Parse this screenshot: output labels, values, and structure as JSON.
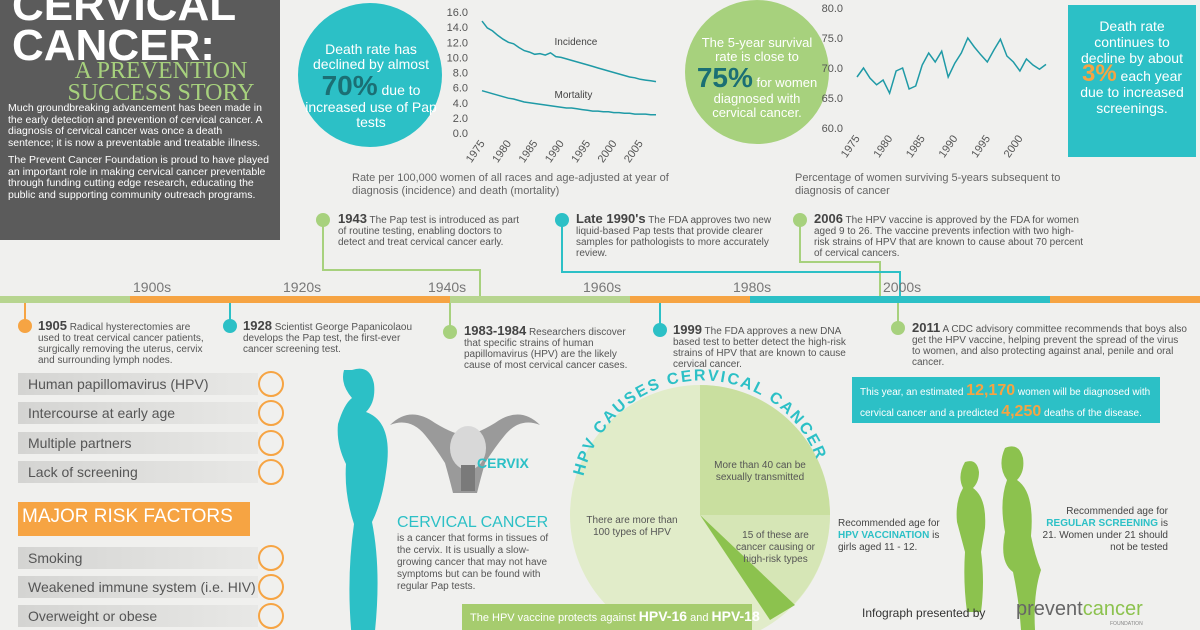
{
  "header": {
    "title": "CERVICAL CANCER:",
    "subtitle": "A PREVENTION SUCCESS STORY",
    "paragraphs": [
      "Much groundbreaking advancement has been made in the early detection and prevention of cervical cancer. A diagnosis of cervical cancer was once a death sentence; it is now a preventable and treatable illness.",
      "The Prevent Cancer Foundation is proud to have played an important role in making cervical cancer preventable through funding cutting edge research, educating the public and supporting community outreach programs."
    ]
  },
  "stats": {
    "death_rate": {
      "before": "Death rate has declined by almost",
      "highlight": "70%",
      "after": "due to increased use of Pap tests"
    },
    "survival": {
      "before": "The 5-year survival rate is close to",
      "highlight": "75%",
      "after": "for women diagnosed with cervical cancer."
    },
    "decline": {
      "before": "Death rate continues to decline by about",
      "highlight": "3%",
      "after": "each year due to increased screenings."
    }
  },
  "chart_data": [
    {
      "type": "line",
      "caption": "Rate per 100,000 women of all races and age-adjusted at year of diagnosis (incidence) and death (mortality)",
      "x": [
        1975,
        1976,
        1977,
        1978,
        1979,
        1980,
        1981,
        1982,
        1983,
        1984,
        1985,
        1986,
        1987,
        1988,
        1989,
        1990,
        1991,
        1992,
        1993,
        1994,
        1995,
        1996,
        1997,
        1998,
        1999,
        2000,
        2001,
        2002,
        2003,
        2004,
        2005,
        2006,
        2007,
        2008
      ],
      "series": [
        {
          "name": "Incidence",
          "color": "#1f9aa6",
          "values": [
            14.8,
            13.9,
            13.5,
            12.9,
            12.4,
            12.0,
            11.8,
            11.3,
            10.9,
            10.7,
            10.4,
            10.5,
            10.3,
            10.6,
            10.1,
            10.0,
            9.8,
            9.6,
            9.4,
            9.2,
            9.0,
            8.8,
            8.6,
            8.4,
            8.2,
            8.0,
            7.8,
            7.6,
            7.4,
            7.3,
            7.1,
            7.0,
            6.9,
            6.8
          ]
        },
        {
          "name": "Mortality",
          "color": "#1f9aa6",
          "values": [
            5.6,
            5.4,
            5.2,
            5.0,
            4.8,
            4.6,
            4.5,
            4.3,
            4.1,
            4.0,
            3.9,
            3.8,
            3.7,
            3.6,
            3.5,
            3.4,
            3.3,
            3.3,
            3.2,
            3.1,
            3.0,
            2.9,
            2.9,
            2.8,
            2.8,
            2.7,
            2.7,
            2.6,
            2.6,
            2.5,
            2.5,
            2.5,
            2.4,
            2.4
          ]
        }
      ],
      "xlim": [
        1975,
        2008
      ],
      "xticks": [
        1975,
        1980,
        1985,
        1990,
        1995,
        2000,
        2005
      ],
      "ylim": [
        0,
        16
      ],
      "yticks": [
        {
          "value": 0,
          "label": "0.0"
        },
        {
          "value": 2,
          "label": "2.0"
        },
        {
          "value": 4,
          "label": "4.0"
        },
        {
          "value": 6,
          "label": "6.0"
        },
        {
          "value": 8,
          "label": "8.0"
        },
        {
          "value": 10,
          "label": "10.0"
        },
        {
          "value": 12,
          "label": "12.0"
        },
        {
          "value": 14,
          "label": "14.0"
        },
        {
          "value": 16,
          "label": "16.0"
        }
      ],
      "grid": false
    },
    {
      "type": "line",
      "caption": "Percentage of women surviving 5-years subsequent to diagnosis of cancer",
      "x": [
        1975,
        1976,
        1977,
        1978,
        1979,
        1980,
        1981,
        1982,
        1983,
        1984,
        1985,
        1986,
        1987,
        1988,
        1989,
        1990,
        1991,
        1992,
        1993,
        1994,
        1995,
        1996,
        1997,
        1998,
        1999,
        2000,
        2001,
        2002,
        2003,
        2004
      ],
      "series": [
        {
          "color": "#1f9aa6",
          "values": [
            68.5,
            70.0,
            68.3,
            67.2,
            68.0,
            65.8,
            69.5,
            70.0,
            66.5,
            67.0,
            70.5,
            72.5,
            71.0,
            72.8,
            68.5,
            70.8,
            72.5,
            75.0,
            73.5,
            72.2,
            71.0,
            73.0,
            74.8,
            72.0,
            71.0,
            69.5,
            71.5,
            70.5,
            69.8,
            70.6
          ]
        }
      ],
      "xlim": [
        1975,
        2004
      ],
      "xticks": [
        1975,
        1980,
        1985,
        1990,
        1995,
        2000
      ],
      "ylim": [
        60,
        80
      ],
      "yticks": [
        {
          "value": 60,
          "label": "60.0"
        },
        {
          "value": 65,
          "label": "65.0"
        },
        {
          "value": 70,
          "label": "70.0"
        },
        {
          "value": 75,
          "label": "75.0"
        },
        {
          "value": 80,
          "label": "80.0"
        }
      ],
      "grid": false
    }
  ],
  "timeline": {
    "decades": [
      "1900s",
      "1920s",
      "1940s",
      "1960s",
      "1980s",
      "2000s"
    ],
    "events": [
      {
        "year": "1943",
        "text": "The Pap test is introduced as part of routine testing, enabling doctors to detect and treat cervical cancer early."
      },
      {
        "year": "Late 1990's",
        "text": "The FDA approves two new liquid-based Pap tests that provide clearer samples for pathologists to more accurately review."
      },
      {
        "year": "2006",
        "text": "The HPV vaccine is approved by the FDA for women aged 9 to 26. The vaccine prevents infection with two high-risk strains of HPV that are known to cause about 70 percent of cervical cancers."
      },
      {
        "year": "1905",
        "text": "Radical hysterectomies are used to treat cervical cancer patients, surgically removing the uterus, cervix and surrounding lymph nodes."
      },
      {
        "year": "1928",
        "text": "Scientist George Papanicolaou develops the Pap test, the first-ever cancer screening test."
      },
      {
        "year": "1983-1984",
        "text": "Researchers discover that specific strains of human papillomavirus (HPV) are the likely cause of most cervical cancer cases."
      },
      {
        "year": "1999",
        "text": "The FDA approves a new DNA based test to better detect the high-risk strains of HPV that are known to cause cervical cancer."
      },
      {
        "year": "2011",
        "text": "A CDC advisory committee recommends that boys also get the HPV vaccine, helping prevent the spread of the virus to women, and also protecting against anal, penile and oral cancer."
      }
    ]
  },
  "risk_factors": {
    "items": [
      "Human papillomavirus (HPV)",
      "Intercourse at early age",
      "Multiple partners",
      "Lack of screening"
    ],
    "heading": "MAJOR RISK FACTORS",
    "major": [
      "Smoking",
      "Weakened immune system (i.e. HIV)",
      "Overweight or obese"
    ]
  },
  "cervical": {
    "label": "CERVIX",
    "heading": "CERVICAL CANCER",
    "text": "is a cancer that forms in tissues of the cervix. It is usually a slow-growing cancer that may not have symptoms but can be found with regular Pap tests."
  },
  "hpv": {
    "title": "HPV CAUSES CERVICAL CANCER",
    "segments": [
      "More than 40 can be sexually transmitted",
      "There are more than 100 types of HPV",
      "15 of these are cancer causing or high-risk types"
    ],
    "vaccine": {
      "before": "The HPV vaccine protects against",
      "first": "HPV-16",
      "mid": "and",
      "second": "HPV-18"
    }
  },
  "estimate": {
    "before": "This year, an estimated",
    "cases": "12,170",
    "middle": "women will be diagnosed with cervical cancer and a predicted",
    "deaths": "4,250",
    "after": "deaths of the disease."
  },
  "recommend": {
    "vaccination": {
      "before": "Recommended age for",
      "highlight": "HPV VACCINATION",
      "after": "is girls aged 11 - 12."
    },
    "screening": {
      "before": "Recommended age for",
      "highlight": "REGULAR SCREENING",
      "after": "is 21. Women under 21 should not be tested"
    }
  },
  "footer": {
    "presented": "Infograph presented by",
    "brand_first": "prevent",
    "brand_second": "cancer",
    "brand_sub": "FOUNDATION"
  }
}
